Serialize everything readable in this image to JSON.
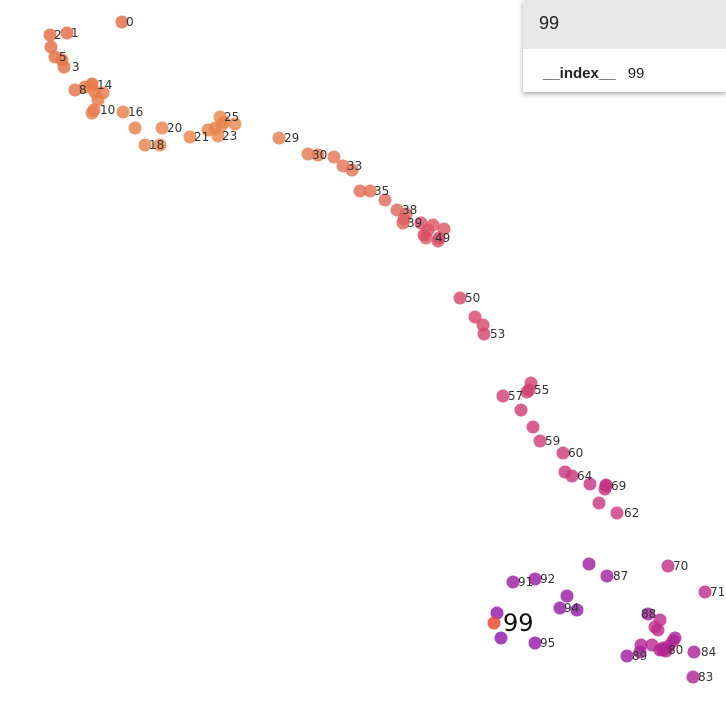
{
  "chart_data": {
    "type": "scatter",
    "title": "",
    "xlabel": "",
    "ylabel": "",
    "grid": false,
    "legend": "none",
    "color_scale": [
      "#e36a45",
      "#ea8a4c",
      "#d84a6a",
      "#c02c8c",
      "#8f17b0"
    ],
    "highlight_color": "#e5462e",
    "x_range": [
      0,
      726
    ],
    "y_range": [
      0,
      718
    ],
    "highlighted": "99",
    "points": [
      {
        "x": 122,
        "y": 22
      },
      {
        "x": 67,
        "y": 33
      },
      {
        "x": 50,
        "y": 35
      },
      {
        "x": 64,
        "y": 67
      },
      {
        "x": 51,
        "y": 47
      },
      {
        "x": 55,
        "y": 57
      },
      {
        "x": 62,
        "y": 60
      },
      {
        "x": 95,
        "y": 92
      },
      {
        "x": 75,
        "y": 90
      },
      {
        "x": 85,
        "y": 87
      },
      {
        "x": 94,
        "y": 110
      },
      {
        "x": 92,
        "y": 84
      },
      {
        "x": 98,
        "y": 100
      },
      {
        "x": 103,
        "y": 93
      },
      {
        "x": 92,
        "y": 85
      },
      {
        "x": 92,
        "y": 113
      },
      {
        "x": 123,
        "y": 112
      },
      {
        "x": 135,
        "y": 128
      },
      {
        "x": 145,
        "y": 145
      },
      {
        "x": 160,
        "y": 145
      },
      {
        "x": 162,
        "y": 128
      },
      {
        "x": 190,
        "y": 137
      },
      {
        "x": 208,
        "y": 130
      },
      {
        "x": 218,
        "y": 136
      },
      {
        "x": 222,
        "y": 125
      },
      {
        "x": 220,
        "y": 117
      },
      {
        "x": 235,
        "y": 124
      },
      {
        "x": 224,
        "y": 122
      },
      {
        "x": 215,
        "y": 128
      },
      {
        "x": 279,
        "y": 138
      },
      {
        "x": 318,
        "y": 155
      },
      {
        "x": 308,
        "y": 154
      },
      {
        "x": 334,
        "y": 157
      },
      {
        "x": 343,
        "y": 166
      },
      {
        "x": 352,
        "y": 170
      },
      {
        "x": 370,
        "y": 191
      },
      {
        "x": 360,
        "y": 191
      },
      {
        "x": 385,
        "y": 200
      },
      {
        "x": 397,
        "y": 210
      },
      {
        "x": 403,
        "y": 223
      },
      {
        "x": 406,
        "y": 214
      },
      {
        "x": 404,
        "y": 219
      },
      {
        "x": 426,
        "y": 238
      },
      {
        "x": 433,
        "y": 225
      },
      {
        "x": 444,
        "y": 229
      },
      {
        "x": 438,
        "y": 241
      },
      {
        "x": 428,
        "y": 230
      },
      {
        "x": 421,
        "y": 223
      },
      {
        "x": 424,
        "y": 235
      },
      {
        "x": 439,
        "y": 238
      },
      {
        "x": 460,
        "y": 298
      },
      {
        "x": 475,
        "y": 317
      },
      {
        "x": 483,
        "y": 325
      },
      {
        "x": 484,
        "y": 334
      },
      {
        "x": 531,
        "y": 383
      },
      {
        "x": 529,
        "y": 390
      },
      {
        "x": 527,
        "y": 392
      },
      {
        "x": 503,
        "y": 396
      },
      {
        "x": 521,
        "y": 410
      },
      {
        "x": 540,
        "y": 441
      },
      {
        "x": 563,
        "y": 453
      },
      {
        "x": 533,
        "y": 427
      },
      {
        "x": 617,
        "y": 513
      },
      {
        "x": 599,
        "y": 503
      },
      {
        "x": 572,
        "y": 476
      },
      {
        "x": 565,
        "y": 472
      },
      {
        "x": 590,
        "y": 484
      },
      {
        "x": 606,
        "y": 485
      },
      {
        "x": 605,
        "y": 489
      },
      {
        "x": 606,
        "y": 486
      },
      {
        "x": 668,
        "y": 566
      },
      {
        "x": 705,
        "y": 592
      },
      {
        "x": 655,
        "y": 627
      },
      {
        "x": 660,
        "y": 620
      },
      {
        "x": 658,
        "y": 630
      },
      {
        "x": 663,
        "y": 648
      },
      {
        "x": 673,
        "y": 641
      },
      {
        "x": 666,
        "y": 651
      },
      {
        "x": 652,
        "y": 645
      },
      {
        "x": 660,
        "y": 650
      },
      {
        "x": 663,
        "y": 650
      },
      {
        "x": 669,
        "y": 646
      },
      {
        "x": 641,
        "y": 645
      },
      {
        "x": 693,
        "y": 677
      },
      {
        "x": 694,
        "y": 652
      },
      {
        "x": 675,
        "y": 638
      },
      {
        "x": 640,
        "y": 652
      },
      {
        "x": 607,
        "y": 576
      },
      {
        "x": 648,
        "y": 614
      },
      {
        "x": 627,
        "y": 656
      },
      {
        "x": 589,
        "y": 564
      },
      {
        "x": 513,
        "y": 582
      },
      {
        "x": 535,
        "y": 579
      },
      {
        "x": 567,
        "y": 596
      },
      {
        "x": 560,
        "y": 608
      },
      {
        "x": 535,
        "y": 643
      },
      {
        "x": 577,
        "y": 610
      },
      {
        "x": 497,
        "y": 613
      },
      {
        "x": 501,
        "y": 638
      },
      {
        "x": 494,
        "y": 623
      }
    ],
    "labels": [
      {
        "i": 0,
        "text": "0",
        "dx": 4
      },
      {
        "i": 1,
        "text": "1",
        "dx": 4
      },
      {
        "i": 2,
        "text": "2",
        "dx": 4
      },
      {
        "i": 3,
        "text": "3",
        "dx": 8
      },
      {
        "i": 5,
        "text": "5",
        "dx": 4
      },
      {
        "i": 8,
        "text": "8",
        "dx": 4
      },
      {
        "i": 10,
        "text": "10",
        "dx": 6
      },
      {
        "i": 14,
        "text": "14",
        "dx": 5
      },
      {
        "i": 16,
        "text": "16",
        "dx": 5
      },
      {
        "i": 18,
        "text": "18",
        "dx": 4
      },
      {
        "i": 20,
        "text": "20",
        "dx": 5
      },
      {
        "i": 21,
        "text": "21",
        "dx": 4
      },
      {
        "i": 23,
        "text": "23",
        "dx": 4
      },
      {
        "i": 25,
        "text": "25",
        "dx": 4
      },
      {
        "i": 29,
        "text": "29",
        "dx": 5
      },
      {
        "i": 30,
        "text": "30",
        "dx": -6
      },
      {
        "i": 33,
        "text": "33",
        "dx": 4
      },
      {
        "i": 35,
        "text": "35",
        "dx": 4
      },
      {
        "i": 38,
        "text": "38",
        "dx": 5
      },
      {
        "i": 39,
        "text": "39",
        "dx": 4
      },
      {
        "i": 49,
        "text": "49",
        "dx": -4
      },
      {
        "i": 50,
        "text": "50",
        "dx": 5
      },
      {
        "i": 53,
        "text": "53",
        "dx": 6
      },
      {
        "i": 55,
        "text": "55",
        "dx": 5
      },
      {
        "i": 57,
        "text": "57",
        "dx": 5
      },
      {
        "i": 59,
        "text": "59",
        "dx": 5
      },
      {
        "i": 60,
        "text": "60",
        "dx": 5
      },
      {
        "i": 62,
        "text": "62",
        "dx": 7
      },
      {
        "i": 64,
        "text": "64",
        "dx": 5
      },
      {
        "i": 69,
        "text": "69",
        "dx": 5
      },
      {
        "i": 70,
        "text": "70",
        "dx": 5
      },
      {
        "i": 71,
        "text": "71",
        "dx": 5
      },
      {
        "i": 80,
        "text": "80",
        "dx": 5
      },
      {
        "i": 83,
        "text": "83",
        "dx": 5
      },
      {
        "i": 84,
        "text": "84",
        "dx": 7
      },
      {
        "i": 87,
        "text": "87",
        "dx": 6
      },
      {
        "i": 88,
        "text": "88",
        "dx": -7
      },
      {
        "i": 89,
        "text": "89",
        "dx": 5
      },
      {
        "i": 91,
        "text": "91",
        "dx": 5
      },
      {
        "i": 92,
        "text": "92",
        "dx": 5
      },
      {
        "i": 94,
        "text": "94",
        "dx": 4
      },
      {
        "i": 95,
        "text": "95",
        "dx": 5
      }
    ]
  },
  "tooltip": {
    "title": "99",
    "rows": [
      {
        "key": "__index__",
        "value": "99"
      }
    ]
  }
}
